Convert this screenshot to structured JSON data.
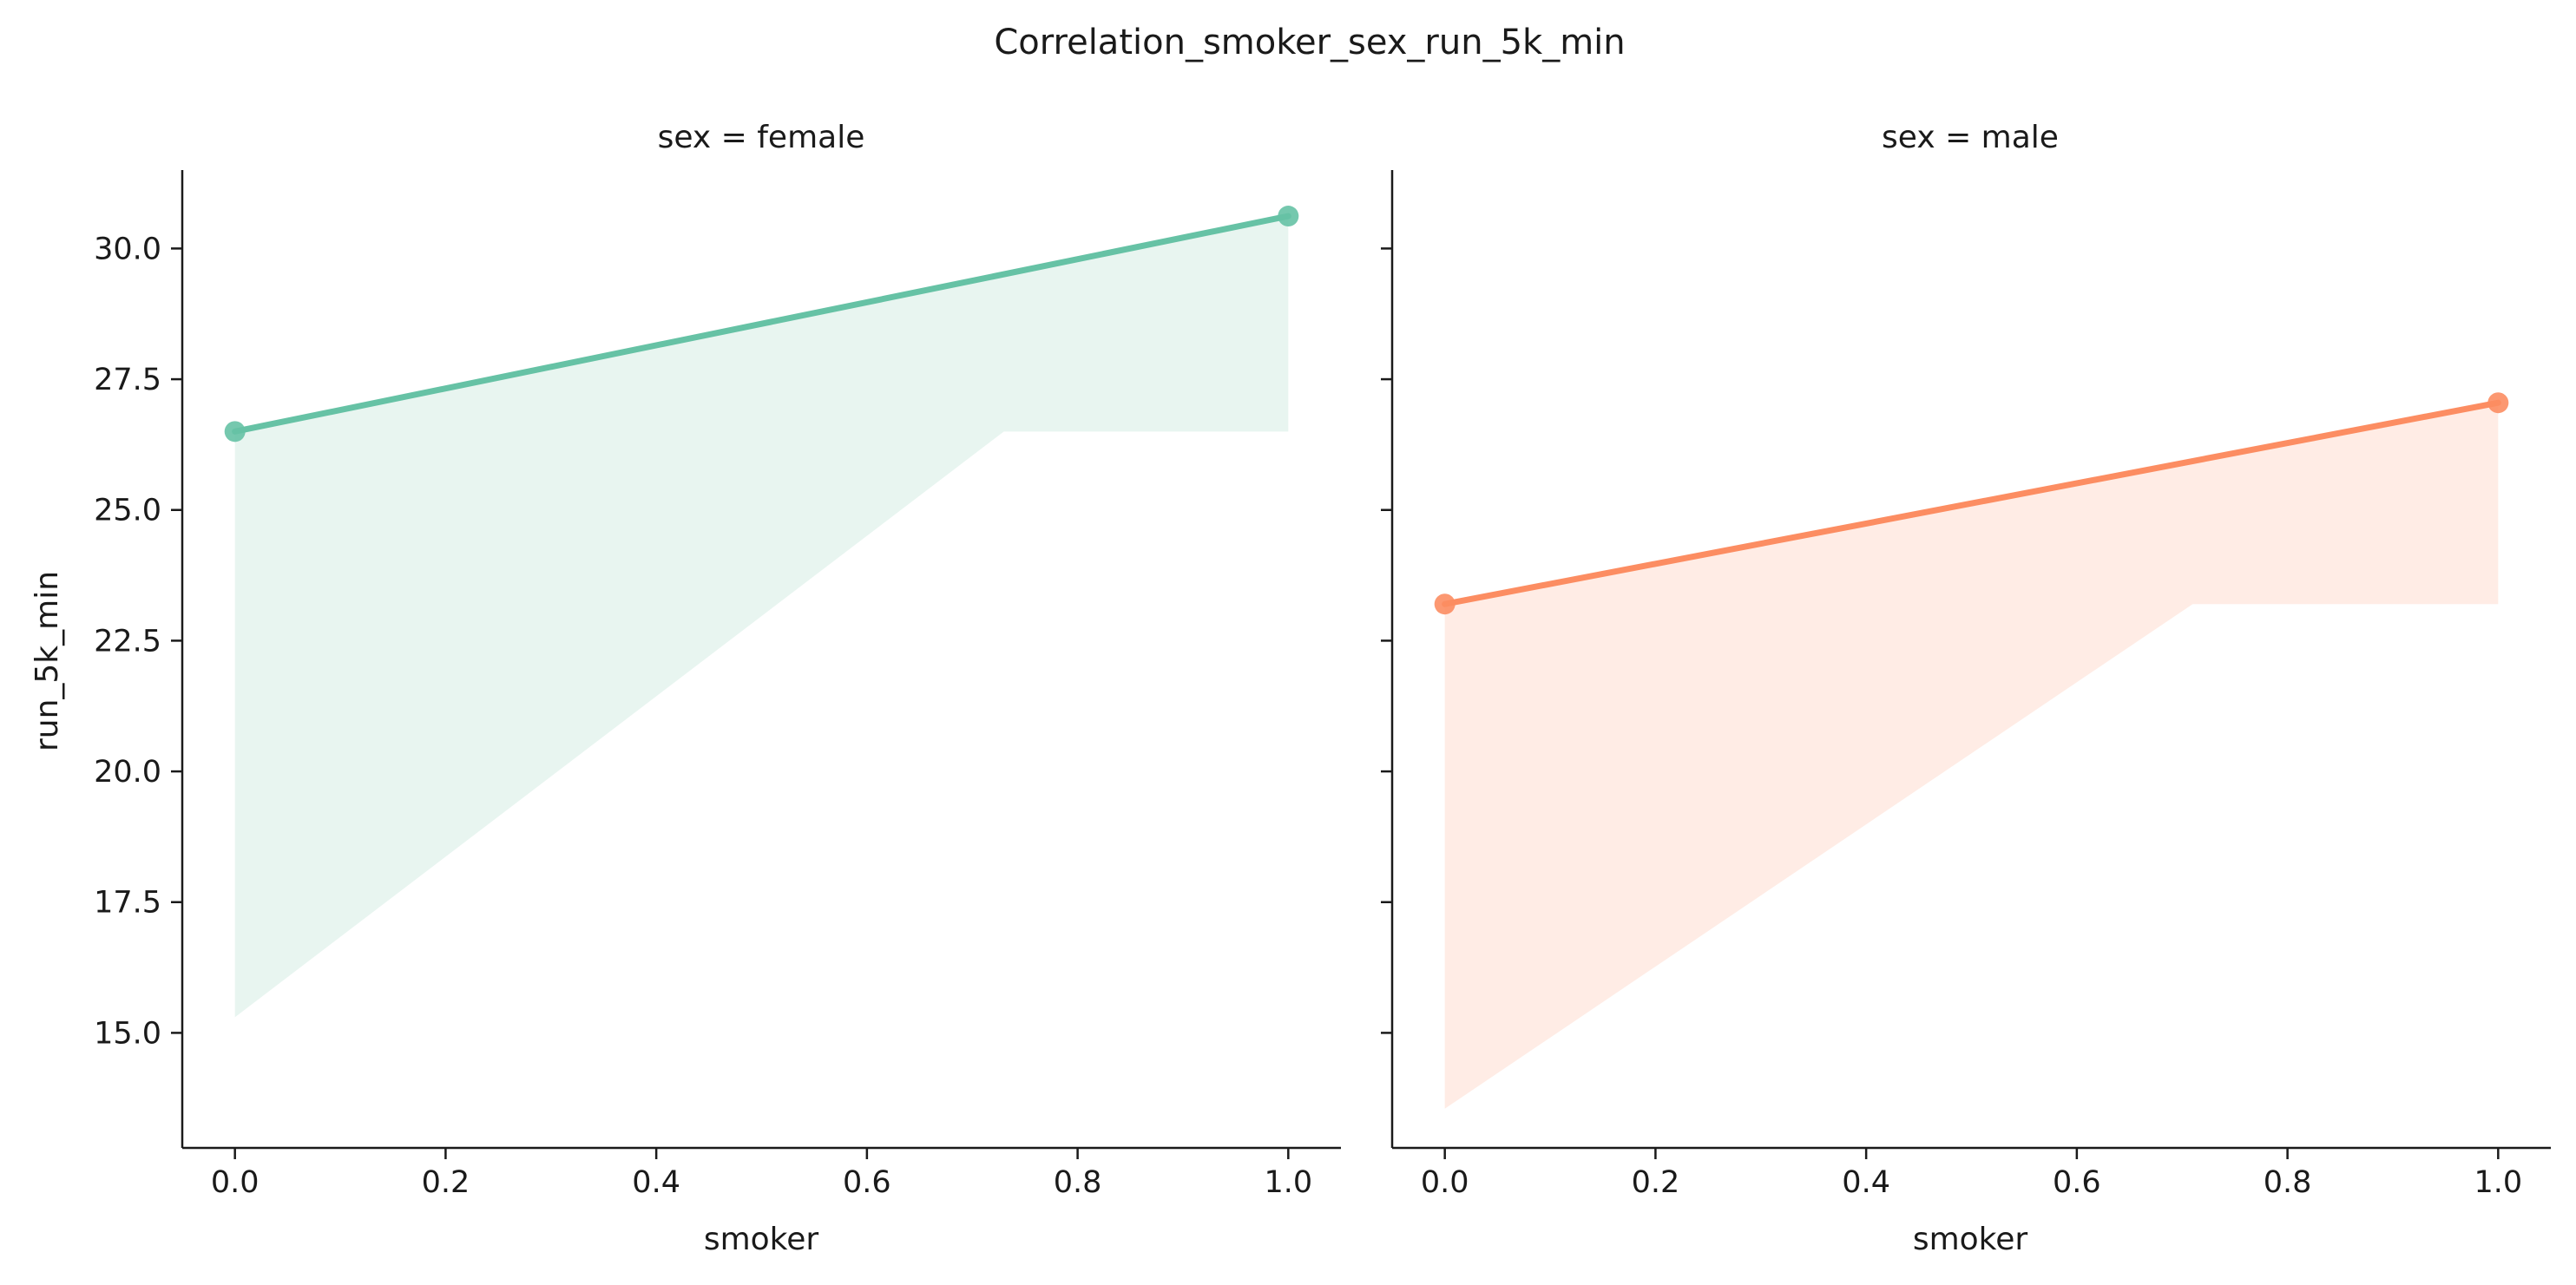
{
  "chart_data": {
    "type": "line",
    "title": "Correlation_smoker_sex_run_5k_min",
    "xlabel": "smoker",
    "ylabel": "run_5k_min",
    "xlim": [
      -0.05,
      1.05
    ],
    "ylim": [
      12.8,
      31.5
    ],
    "x_ticks": [
      "0.0",
      "0.2",
      "0.4",
      "0.6",
      "0.8",
      "1.0"
    ],
    "y_ticks": [
      "15.0",
      "17.5",
      "20.0",
      "22.5",
      "25.0",
      "27.5",
      "30.0"
    ],
    "grid": false,
    "legend": "none",
    "facets": [
      {
        "title": "sex = female",
        "color": "#66c2a5",
        "band_color": "#e8f5f0",
        "x": [
          0,
          1
        ],
        "y": [
          26.5,
          30.62
        ],
        "band": {
          "x": [
            0,
            0.73,
            1
          ],
          "upper": [
            26.5,
            29.5,
            30.62
          ],
          "lower": [
            15.3,
            26.5,
            26.5
          ]
        }
      },
      {
        "title": "sex = male",
        "color": "#fc8d62",
        "band_color": "#ffece5",
        "x": [
          0,
          1
        ],
        "y": [
          23.2,
          27.05
        ],
        "band": {
          "x": [
            0,
            0.71,
            1
          ],
          "upper": [
            23.2,
            25.93,
            27.05
          ],
          "lower": [
            13.55,
            23.2,
            23.2
          ]
        }
      }
    ]
  }
}
